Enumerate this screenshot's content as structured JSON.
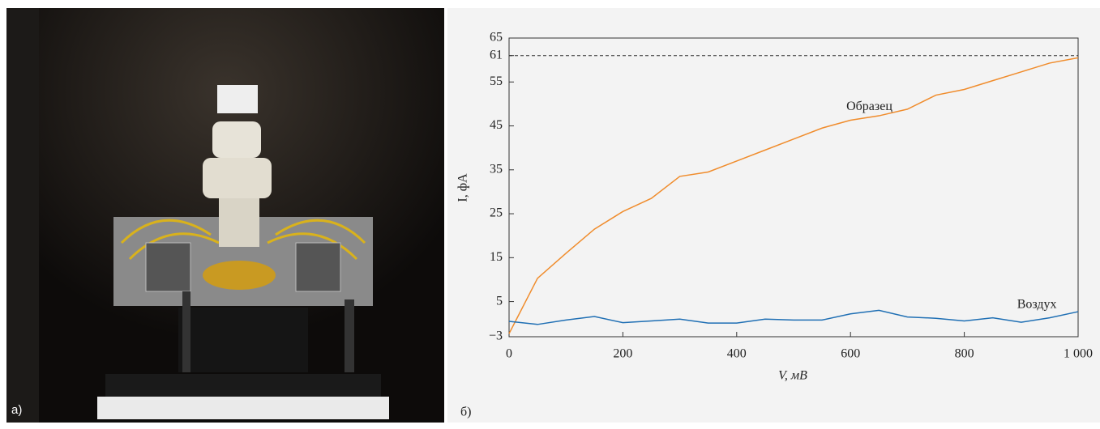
{
  "panels": {
    "photo_label": "а)",
    "chart_label": "б)"
  },
  "chart_data": {
    "type": "line",
    "xlabel": "V, мВ",
    "ylabel": "I, фА",
    "xlim": [
      0,
      1000
    ],
    "ylim": [
      -3,
      65
    ],
    "xticks": [
      0,
      200,
      400,
      600,
      800,
      {
        "value": 1000,
        "label": "1 000"
      }
    ],
    "yticks": [
      {
        "value": -3,
        "label": "−3"
      },
      5,
      15,
      25,
      35,
      45,
      55,
      61,
      65
    ],
    "reference_lines": [
      -3,
      61
    ],
    "x": [
      0,
      50,
      100,
      150,
      200,
      250,
      300,
      350,
      400,
      450,
      500,
      550,
      600,
      650,
      700,
      750,
      800,
      850,
      900,
      950,
      1000
    ],
    "series": [
      {
        "name": "Образец",
        "color": "#f08c2c",
        "values": [
          -2.3,
          10.3,
          16,
          21.5,
          25.5,
          28.5,
          33.5,
          34.5,
          37,
          39.5,
          42,
          44.5,
          46.3,
          47.3,
          48.8,
          52,
          53.3,
          55.3,
          57.3,
          59.3,
          60.5
        ]
      },
      {
        "name": "Воздух",
        "color": "#1f6fb4",
        "values": [
          0.5,
          -0.2,
          0.8,
          1.6,
          0.2,
          0.6,
          1,
          0.1,
          0.1,
          1,
          0.8,
          0.8,
          2.2,
          3,
          1.5,
          1.2,
          0.6,
          1.3,
          0.3,
          1.3,
          2.7
        ]
      }
    ]
  }
}
